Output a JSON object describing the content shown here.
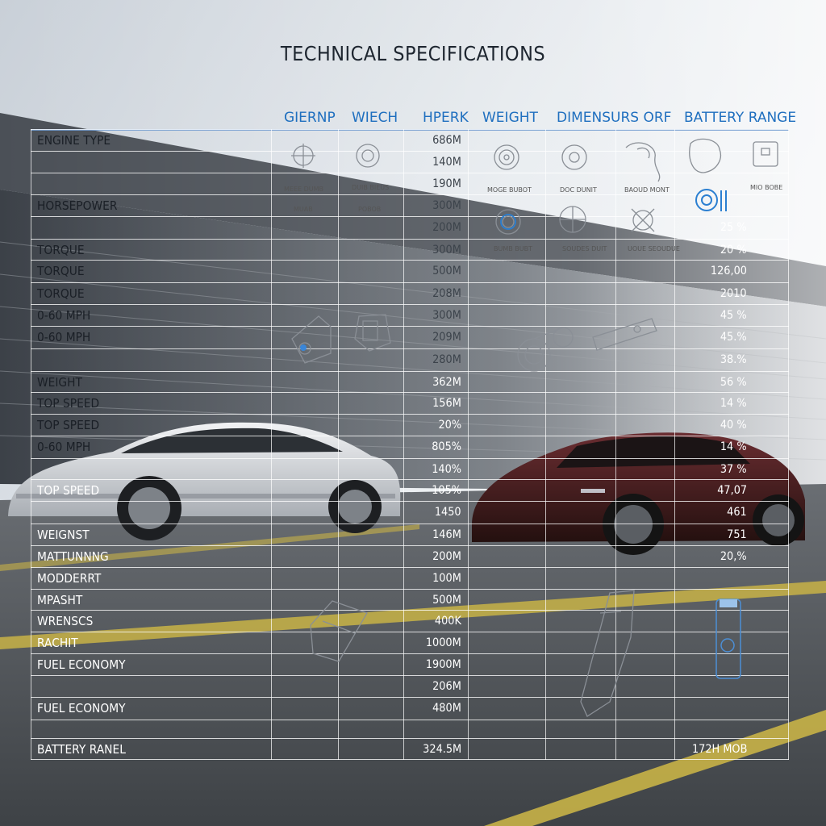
{
  "title": "TECHNICAL SPECIFICATIONS",
  "column_headers": [
    "GIERNP",
    "WIECH",
    "HPERK",
    "WEIGHT",
    "DIMENSURS ORF",
    "BATTERY RANGE"
  ],
  "rows": [
    {
      "label": "ENGINE TYPE",
      "value": "686M",
      "pct": ""
    },
    {
      "label": "",
      "value": "140M",
      "pct": ""
    },
    {
      "label": "",
      "value": "190M",
      "pct": ""
    },
    {
      "label": "HORSEPOWER",
      "value": "300M",
      "pct": ""
    },
    {
      "label": "",
      "value": "200M",
      "pct": "25 %"
    },
    {
      "label": "TORQUE",
      "value": "300M",
      "pct": "20 %"
    },
    {
      "label": "TORQUE",
      "value": "500M",
      "pct": "126,00"
    },
    {
      "label": "TORQUE",
      "value": "208M",
      "pct": "2010"
    },
    {
      "label": "0-60 MPH",
      "value": "300M",
      "pct": "45 %"
    },
    {
      "label": "0-60 MPH",
      "value": "209M",
      "pct": "45.%"
    },
    {
      "label": "",
      "value": "280M",
      "pct": "38.%"
    },
    {
      "label": "WEIGHT",
      "value": "362M",
      "pct": "56 %"
    },
    {
      "label": "TOP SPEED",
      "value": "156M",
      "pct": "14 %"
    },
    {
      "label": "TOP SPEED",
      "value": "20%",
      "pct": "40 %"
    },
    {
      "label": "0-60 MPH",
      "value": "805%",
      "pct": "14 %"
    },
    {
      "label": "",
      "value": "140%",
      "pct": "37 %"
    },
    {
      "label": "TOP SPEED",
      "value": "105%",
      "pct": "47,07"
    },
    {
      "label": "",
      "value": "1450",
      "pct": "461"
    },
    {
      "label": "WEIGNST",
      "value": "146M",
      "pct": "751"
    },
    {
      "label": "MATTUNNNG",
      "value": "200M",
      "pct": "20,%"
    },
    {
      "label": "MODDERRT",
      "value": "100M",
      "pct": ""
    },
    {
      "label": "MPASHT",
      "value": "500M",
      "pct": ""
    },
    {
      "label": "WRENSCS",
      "value": "400K",
      "pct": ""
    },
    {
      "label": "RACHIT",
      "value": "1000M",
      "pct": ""
    },
    {
      "label": "FUEL ECONOMY",
      "value": "1900M",
      "pct": ""
    },
    {
      "label": "",
      "value": "206M",
      "pct": ""
    },
    {
      "label": "FUEL ECONOMY",
      "value": "480M",
      "pct": ""
    },
    {
      "label": "",
      "value": "",
      "pct": ""
    },
    {
      "label": "BATTERY RANEL",
      "value": "324.5M",
      "pct": "172H MOB"
    }
  ],
  "icon_captions": {
    "c1a": "MEEE DUMB",
    "c1b": "MUAB",
    "c2a": "DUIB BIEUS",
    "c2b": "POBOB",
    "c3a": "MOGE BUBOT",
    "c3b": "BUMB BUBT",
    "c4a": "DOC DUNIT",
    "c4b": "SOUDES DUIT",
    "c5a": "BAOUD MONT",
    "c5b": "UOUE SEOUDUE",
    "c6a": "MIO BOBE"
  },
  "colors": {
    "accent_blue": "#1f6fbf",
    "text_dark": "#1a1f26",
    "text_light": "#ffffff",
    "sky": "#dde4ec",
    "road": "#4a4e53",
    "lane_yellow": "#c8b347",
    "car_left": "#d4d8dd",
    "car_right": "#3a1a1c"
  }
}
